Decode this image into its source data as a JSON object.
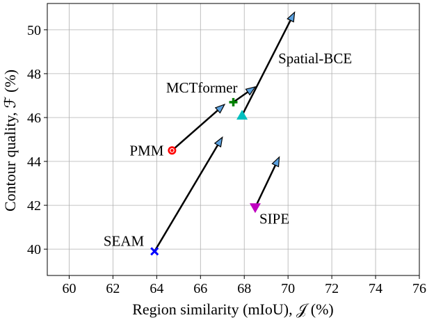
{
  "chart_data": {
    "type": "scatter",
    "title": "",
    "xlabel": "Region similarity (mIoU), 𝒥 (%)",
    "ylabel": "Contour quality, ℱ (%)",
    "xlim": [
      59,
      76
    ],
    "ylim": [
      38.8,
      51.2
    ],
    "xticks": [
      60,
      62,
      64,
      66,
      68,
      70,
      72,
      74,
      76
    ],
    "yticks": [
      40,
      42,
      44,
      46,
      48,
      50
    ],
    "grid": true,
    "legend": "none",
    "points": [
      {
        "label": "SEAM",
        "x": 63.9,
        "y": 39.9,
        "to_x": 67.0,
        "to_y": 45.1,
        "marker": "x",
        "color": "#0000ff"
      },
      {
        "label": "PMM",
        "x": 64.7,
        "y": 44.5,
        "to_x": 67.1,
        "to_y": 46.6,
        "marker": "circle",
        "color": "#ff0000"
      },
      {
        "label": "MCTformer",
        "x": 67.5,
        "y": 46.7,
        "to_x": 68.5,
        "to_y": 47.4,
        "marker": "plus",
        "color": "#008000"
      },
      {
        "label": "Spatial-BCE",
        "x": 67.9,
        "y": 46.1,
        "to_x": 70.3,
        "to_y": 50.8,
        "marker": "triangle-up",
        "color": "#00bfbf"
      },
      {
        "label": "SIPE",
        "x": 68.5,
        "y": 41.9,
        "to_x": 69.6,
        "to_y": 44.2,
        "marker": "triangle-down",
        "color": "#bf00bf"
      }
    ]
  }
}
